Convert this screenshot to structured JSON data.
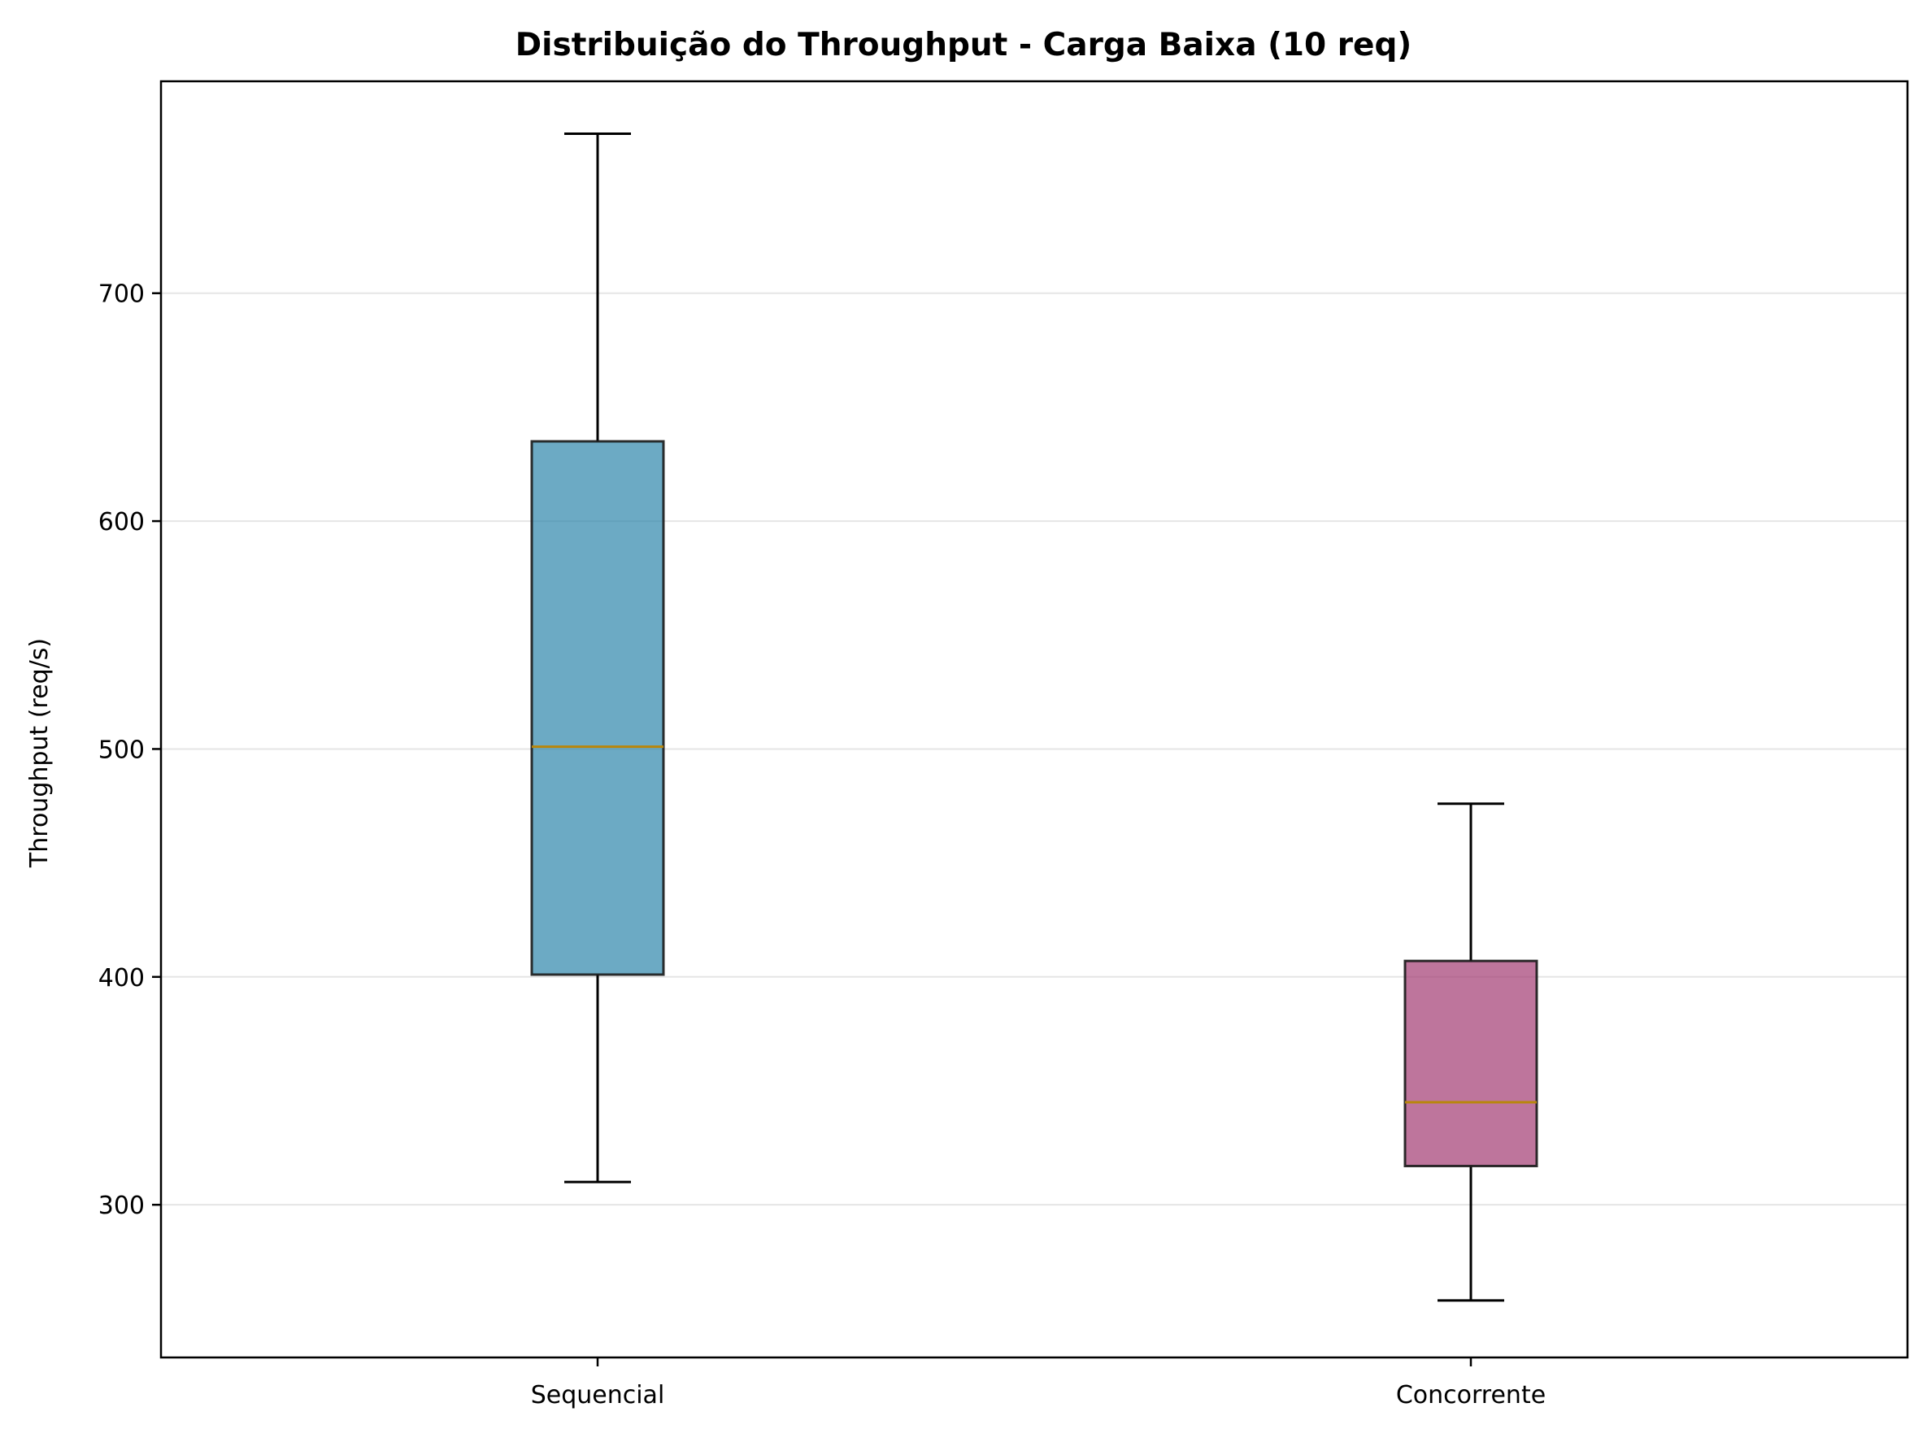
{
  "chart_data": {
    "type": "box",
    "title": "Distribuição do Throughput - Carga Baixa (10 req)",
    "xlabel": "",
    "ylabel": "Throughput (req/s)",
    "ylim": [
      233,
      793
    ],
    "yticks": [
      300,
      400,
      500,
      600,
      700
    ],
    "grid": "y",
    "categories": [
      "Sequencial",
      "Concorrente"
    ],
    "boxes": [
      {
        "category": "Sequencial",
        "whisker_low": 310,
        "q1": 401,
        "median": 501,
        "q3": 635,
        "whisker_high": 770,
        "color": "#2E86AB"
      },
      {
        "category": "Concorrente",
        "whisker_low": 258,
        "q1": 317,
        "median": 345,
        "q3": 407,
        "whisker_high": 476,
        "color": "#A23B72"
      }
    ],
    "median_color": "#B8860B"
  }
}
